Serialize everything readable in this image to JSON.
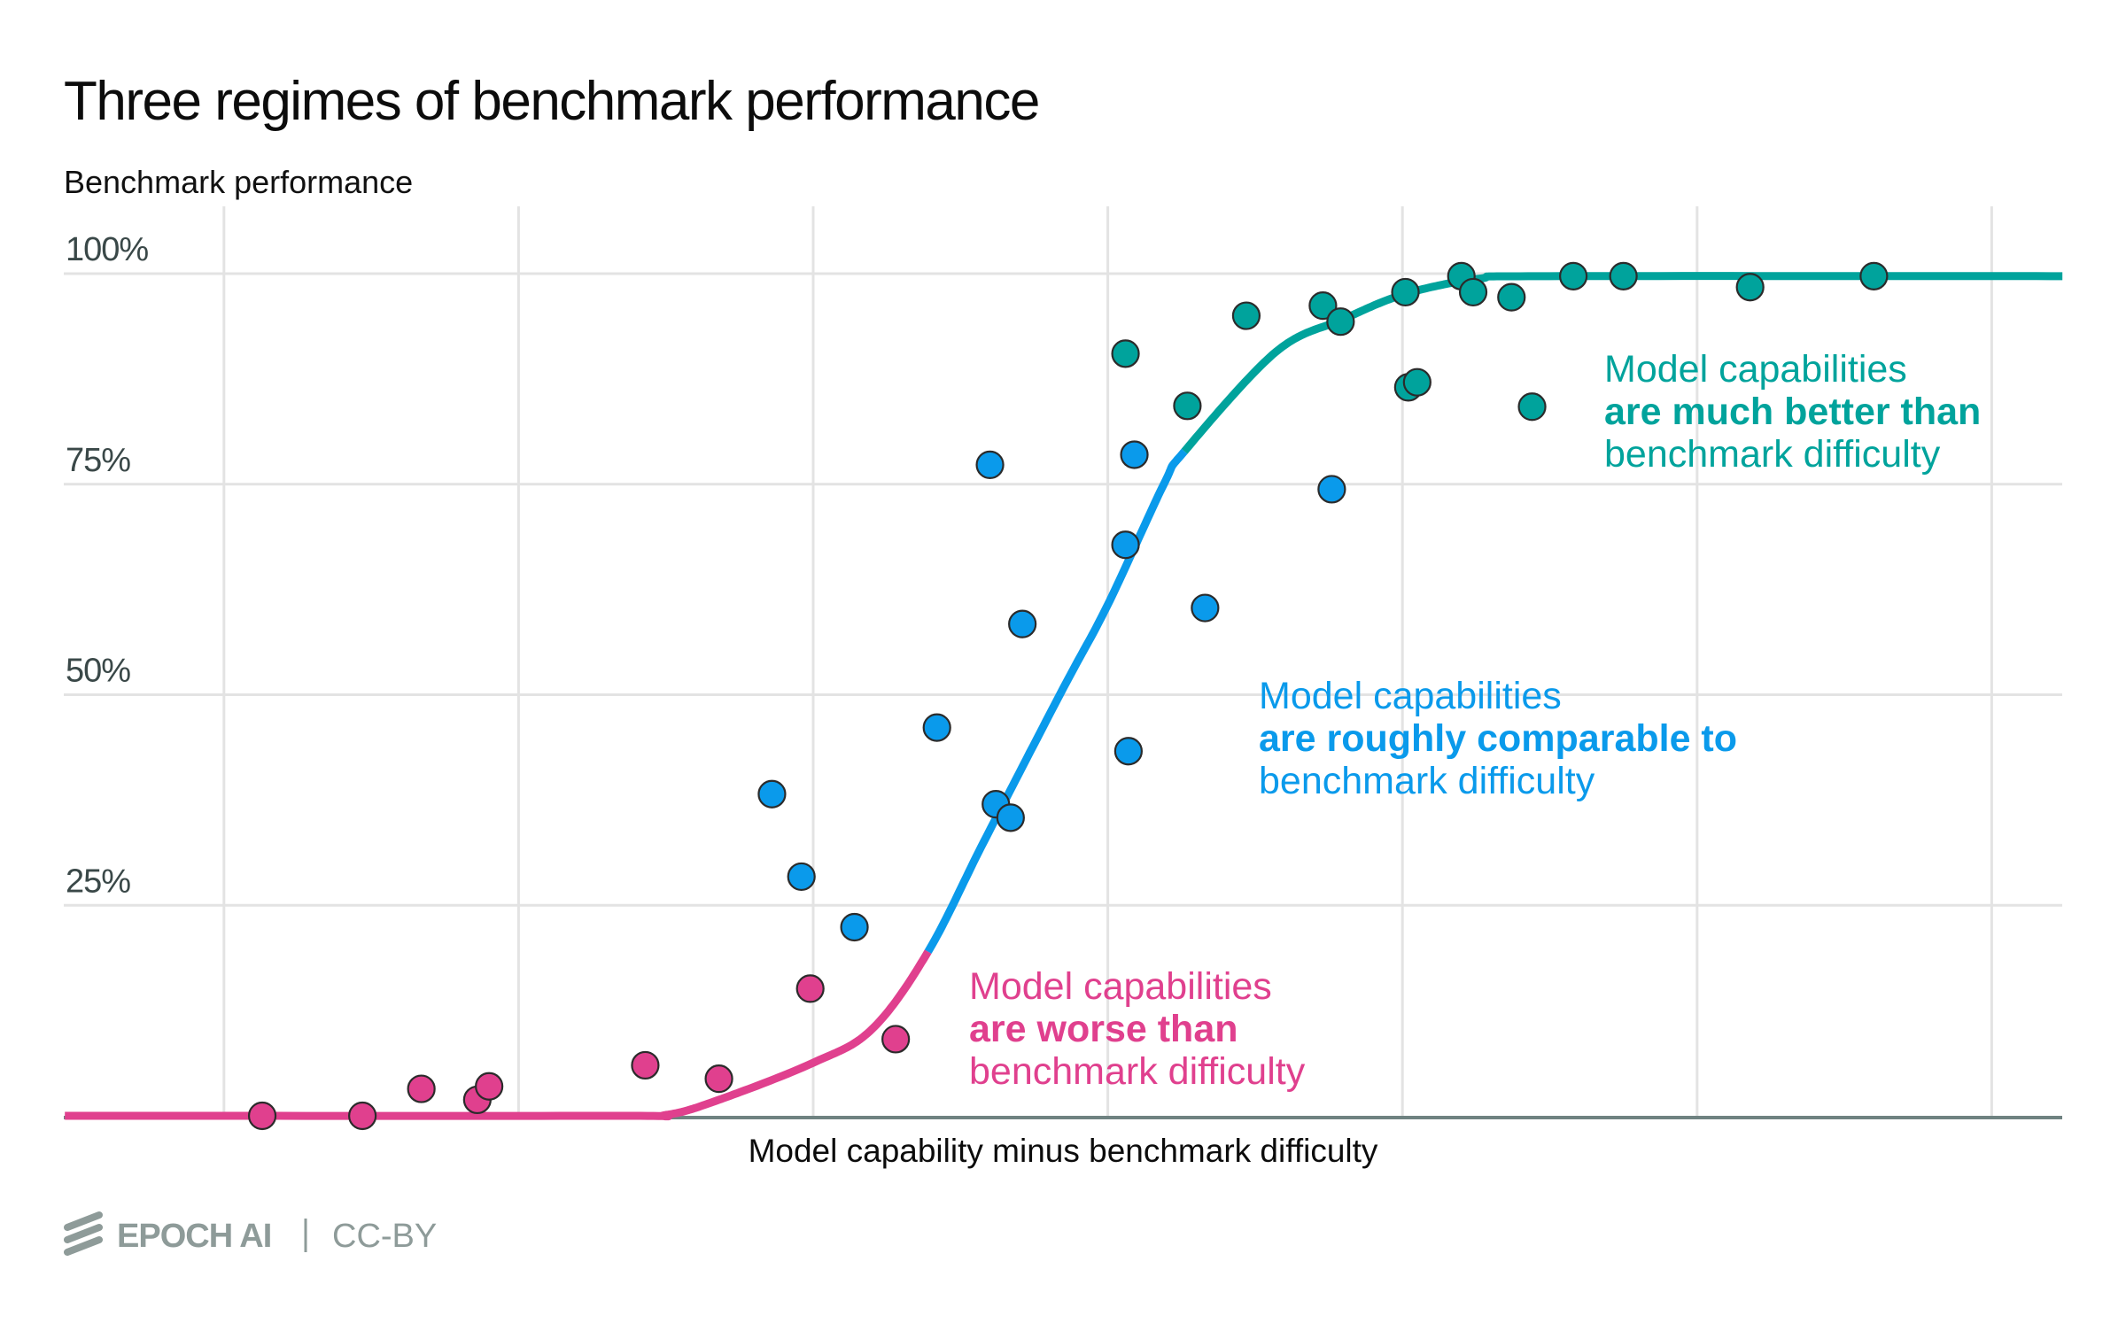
{
  "chart_data": {
    "type": "scatter",
    "title": "Three regimes of benchmark performance",
    "ylabel": "Benchmark performance",
    "xlabel": "Model capability minus benchmark difficulty",
    "ylim": [
      0,
      100
    ],
    "xlim": [
      -2.54,
      4.43
    ],
    "x_units": "arbitrary (one unit = one vertical gridline spacing; no tick labels shown)",
    "y_ticks": [
      {
        "value": 25,
        "label": "25%"
      },
      {
        "value": 50,
        "label": "50%"
      },
      {
        "value": 75,
        "label": "75%"
      },
      {
        "value": 100,
        "label": "100%"
      }
    ],
    "x_gridlines": [
      -2,
      -1,
      0,
      1,
      2,
      3,
      4
    ],
    "grid": true,
    "legend": "none (inline annotations)",
    "series": [
      {
        "name": "worse",
        "color": "#e0408e",
        "points": [
          {
            "x": -1.87,
            "y": 0.0
          },
          {
            "x": -1.53,
            "y": 0.0
          },
          {
            "x": -1.33,
            "y": 3.2
          },
          {
            "x": -1.14,
            "y": 1.9
          },
          {
            "x": -1.1,
            "y": 3.5
          },
          {
            "x": -0.57,
            "y": 6.0
          },
          {
            "x": -0.32,
            "y": 4.4
          },
          {
            "x": -0.01,
            "y": 15.1
          },
          {
            "x": 0.28,
            "y": 9.1
          }
        ]
      },
      {
        "name": "comparable",
        "color": "#0a9aeb",
        "points": [
          {
            "x": -0.14,
            "y": 38.2
          },
          {
            "x": -0.04,
            "y": 28.4
          },
          {
            "x": 0.14,
            "y": 22.4
          },
          {
            "x": 0.42,
            "y": 46.1
          },
          {
            "x": 0.6,
            "y": 77.3
          },
          {
            "x": 0.62,
            "y": 37.0
          },
          {
            "x": 0.67,
            "y": 35.4
          },
          {
            "x": 0.71,
            "y": 58.4
          },
          {
            "x": 1.06,
            "y": 67.8
          },
          {
            "x": 1.09,
            "y": 78.5
          },
          {
            "x": 1.07,
            "y": 43.3
          },
          {
            "x": 1.33,
            "y": 60.3
          },
          {
            "x": 1.76,
            "y": 74.4
          }
        ]
      },
      {
        "name": "much better",
        "color": "#00a39c",
        "points": [
          {
            "x": 1.06,
            "y": 90.5
          },
          {
            "x": 1.27,
            "y": 84.3
          },
          {
            "x": 1.47,
            "y": 95.0
          },
          {
            "x": 1.73,
            "y": 96.2
          },
          {
            "x": 1.79,
            "y": 94.3
          },
          {
            "x": 2.01,
            "y": 97.8
          },
          {
            "x": 2.02,
            "y": 86.5
          },
          {
            "x": 2.05,
            "y": 87.1
          },
          {
            "x": 2.2,
            "y": 99.7
          },
          {
            "x": 2.24,
            "y": 97.8
          },
          {
            "x": 2.37,
            "y": 97.2
          },
          {
            "x": 2.44,
            "y": 84.2
          },
          {
            "x": 2.58,
            "y": 99.7
          },
          {
            "x": 2.75,
            "y": 99.7
          },
          {
            "x": 3.18,
            "y": 98.4
          },
          {
            "x": 3.6,
            "y": 99.7
          }
        ]
      }
    ],
    "fit_curve": {
      "points": [
        [
          -2.54,
          0
        ],
        [
          -0.69,
          0
        ],
        [
          -0.5,
          0.1
        ],
        [
          -0.32,
          1.9
        ],
        [
          0.0,
          6.3
        ],
        [
          0.2,
          10.3
        ],
        [
          0.39,
          19.5
        ],
        [
          0.58,
          32.6
        ],
        [
          0.84,
          50.2
        ],
        [
          1.0,
          60.7
        ],
        [
          1.19,
          75.0
        ],
        [
          1.26,
          78.9
        ],
        [
          1.57,
          90.7
        ],
        [
          1.8,
          94.6
        ],
        [
          2.01,
          97.6
        ],
        [
          2.26,
          99.4
        ],
        [
          2.5,
          99.7
        ],
        [
          4.24,
          99.7
        ]
      ],
      "segments": [
        {
          "name": "worse",
          "from_x": -2.54,
          "to_x": 0.39,
          "color": "#e0408e"
        },
        {
          "name": "comparable",
          "from_x": 0.39,
          "to_x": 1.26,
          "color": "#0a9aeb"
        },
        {
          "name": "much better",
          "from_x": 1.26,
          "to_x": 4.24,
          "color": "#00a39c"
        }
      ]
    },
    "annotations": [
      {
        "regime": "worse",
        "color": "#e0408e",
        "line1": "Model capabilities",
        "line2": "are worse than",
        "line3": "benchmark difficulty"
      },
      {
        "regime": "comparable",
        "color": "#0a9aeb",
        "line1": "Model capabilities",
        "line2": "are roughly comparable to",
        "line3": "benchmark difficulty"
      },
      {
        "regime": "much better",
        "color": "#00a39c",
        "line1": "Model capabilities",
        "line2": "are much better than",
        "line3": "benchmark difficulty"
      }
    ]
  },
  "footer": {
    "brand": "EPOCH AI",
    "separator": "|",
    "license": "CC-BY"
  }
}
